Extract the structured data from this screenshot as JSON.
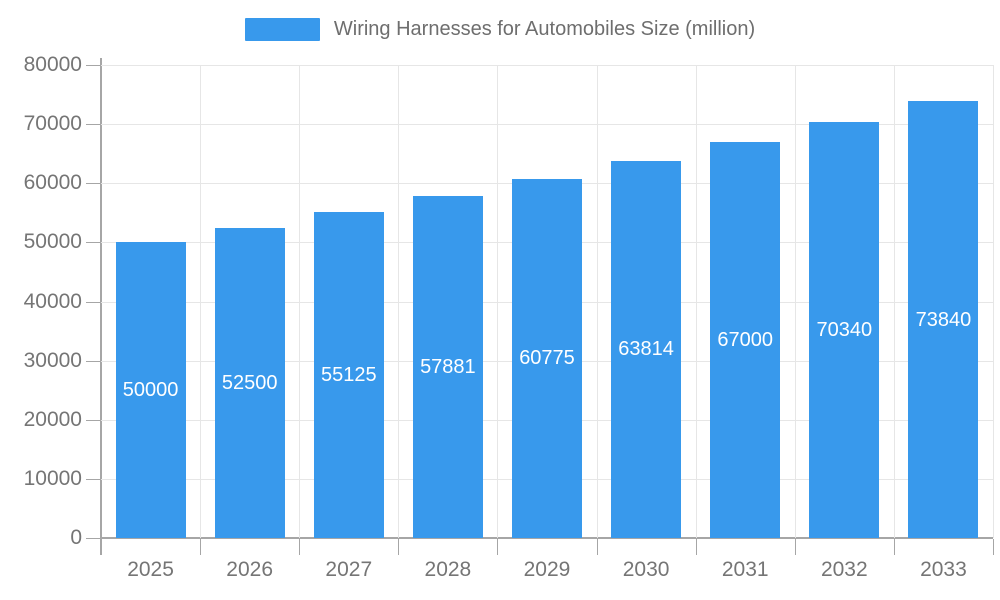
{
  "legend": {
    "label": "Wiring Harnesses for Automobiles Size (million)"
  },
  "chart_data": {
    "type": "bar",
    "title": "Wiring Harnesses for Automobiles Size (million)",
    "categories": [
      "2025",
      "2026",
      "2027",
      "2028",
      "2029",
      "2030",
      "2031",
      "2032",
      "2033"
    ],
    "series": [
      {
        "name": "Wiring Harnesses for Automobiles Size (million)",
        "values": [
          50000,
          52500,
          55125,
          57881,
          60775,
          63814,
          67000,
          70340,
          73840
        ]
      }
    ],
    "xlabel": "",
    "ylabel": "",
    "ylim": [
      0,
      80000
    ],
    "ytick_step": 10000,
    "ytick_labels": [
      "0",
      "10000",
      "20000",
      "30000",
      "40000",
      "50000",
      "60000",
      "70000",
      "80000"
    ],
    "grid": true,
    "legend_position": "top",
    "value_label_position": "inside-center"
  },
  "colors": {
    "bar": "#3899ec",
    "grid": "#e6e6e6",
    "axis": "#a6a6a6",
    "axis_text": "#757575",
    "title_text": "#6e6e6e",
    "value_label": "#ffffff",
    "background": "#ffffff"
  }
}
